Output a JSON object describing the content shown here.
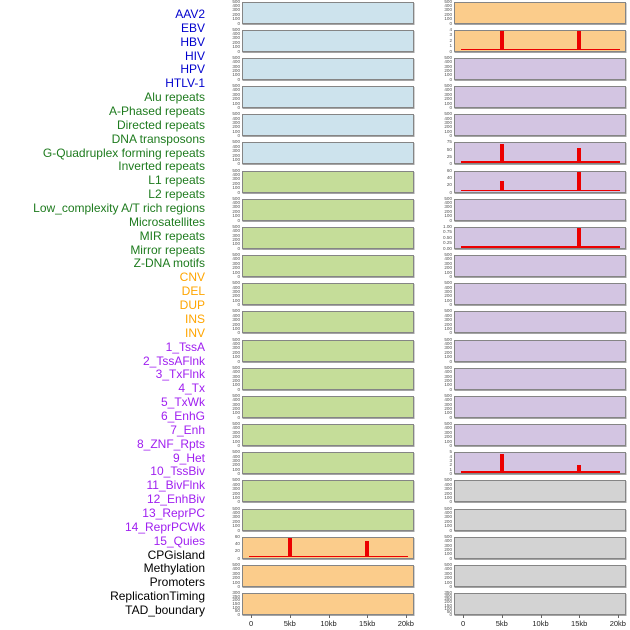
{
  "figure_title": "",
  "chart_data": {
    "type": "small_multiples_density",
    "description_layout": "44 feature labels on left; density panels in two plot columns (rows 1-22 left column, rows 23-44 right column); red spikes mark signal peaks at 5kb and 15kb",
    "x_axis": {
      "tick_labels": [
        "0",
        "5kb",
        "10kb",
        "15kb",
        "20kb"
      ],
      "tick_kb": [
        0,
        5,
        10,
        15,
        20
      ],
      "domain_kb": [
        0,
        20
      ]
    },
    "colors": {
      "spike_red": "#ec0000",
      "panel_border": "#858585",
      "ytick_text": "#555555",
      "xtick_text": "#222222"
    },
    "categories": {
      "virus": {
        "label_color": "#0000cd",
        "fill": "#cde3ed"
      },
      "repeat": {
        "label_color": "#1e7b1e",
        "fill": "#c5dd99"
      },
      "sv": {
        "label_color": "#ffa500",
        "fill": "#fbcc8b"
      },
      "chromatin": {
        "label_color": "#a020f0",
        "fill": "#d3c5e2"
      },
      "other": {
        "label_color": "#000000",
        "fill": "#d3d3d3"
      }
    },
    "panels": [
      {
        "name": "AAV2",
        "category": "virus",
        "yticks": [
          "500",
          "400",
          "300",
          "200",
          "100",
          "0"
        ],
        "spikes": [],
        "baseline": false
      },
      {
        "name": "EBV",
        "category": "virus",
        "yticks": [
          "500",
          "400",
          "300",
          "200",
          "100",
          "0"
        ],
        "spikes": [],
        "baseline": false
      },
      {
        "name": "HBV",
        "category": "virus",
        "yticks": [
          "500",
          "400",
          "300",
          "200",
          "100",
          "0"
        ],
        "spikes": [],
        "baseline": false
      },
      {
        "name": "HIV",
        "category": "virus",
        "yticks": [
          "500",
          "400",
          "300",
          "200",
          "100",
          "0"
        ],
        "spikes": [],
        "baseline": false
      },
      {
        "name": "HPV",
        "category": "virus",
        "yticks": [
          "500",
          "400",
          "300",
          "200",
          "100",
          "0"
        ],
        "spikes": [],
        "baseline": false
      },
      {
        "name": "HTLV-1",
        "category": "virus",
        "yticks": [
          "500",
          "400",
          "300",
          "200",
          "100",
          "0"
        ],
        "spikes": [],
        "baseline": false
      },
      {
        "name": "Alu repeats",
        "category": "repeat",
        "yticks": [
          "500",
          "400",
          "300",
          "200",
          "100",
          "0"
        ],
        "spikes": [],
        "baseline": false
      },
      {
        "name": "A-Phased repeats",
        "category": "repeat",
        "yticks": [
          "500",
          "400",
          "300",
          "200",
          "100",
          "0"
        ],
        "spikes": [],
        "baseline": false
      },
      {
        "name": "Directed repeats",
        "category": "repeat",
        "yticks": [
          "500",
          "400",
          "300",
          "200",
          "100",
          "0"
        ],
        "spikes": [],
        "baseline": false
      },
      {
        "name": "DNA transposons",
        "category": "repeat",
        "yticks": [
          "500",
          "400",
          "300",
          "200",
          "100",
          "0"
        ],
        "spikes": [],
        "baseline": false
      },
      {
        "name": "G-Quadruplex forming repeats",
        "category": "repeat",
        "yticks": [
          "500",
          "400",
          "300",
          "200",
          "100",
          "0"
        ],
        "spikes": [],
        "baseline": false
      },
      {
        "name": "Inverted repeats",
        "category": "repeat",
        "yticks": [
          "500",
          "400",
          "300",
          "200",
          "100",
          "0"
        ],
        "spikes": [],
        "baseline": false
      },
      {
        "name": "L1 repeats",
        "category": "repeat",
        "yticks": [
          "500",
          "400",
          "300",
          "200",
          "100",
          "0"
        ],
        "spikes": [],
        "baseline": false
      },
      {
        "name": "L2 repeats",
        "category": "repeat",
        "yticks": [
          "500",
          "400",
          "300",
          "200",
          "100",
          "0"
        ],
        "spikes": [],
        "baseline": false
      },
      {
        "name": "Low_complexity A/T rich regions",
        "category": "repeat",
        "yticks": [
          "500",
          "400",
          "300",
          "200",
          "100",
          "0"
        ],
        "spikes": [],
        "baseline": false
      },
      {
        "name": "Microsatellites",
        "category": "repeat",
        "yticks": [
          "500",
          "400",
          "300",
          "200",
          "100",
          "0"
        ],
        "spikes": [],
        "baseline": false
      },
      {
        "name": "MIR repeats",
        "category": "repeat",
        "yticks": [
          "500",
          "400",
          "300",
          "200",
          "100",
          "0"
        ],
        "spikes": [],
        "baseline": false
      },
      {
        "name": "Mirror repeats",
        "category": "repeat",
        "yticks": [
          "500",
          "400",
          "300",
          "200",
          "100",
          "0"
        ],
        "spikes": [],
        "baseline": false
      },
      {
        "name": "Z-DNA motifs",
        "category": "repeat",
        "yticks": [
          "500",
          "400",
          "300",
          "200",
          "100",
          "0"
        ],
        "spikes": [],
        "baseline": false
      },
      {
        "name": "CNV",
        "category": "sv",
        "yticks": [
          "60",
          "40",
          "20",
          "0"
        ],
        "spikes": [
          {
            "kb": 5,
            "frac": 1.0
          },
          {
            "kb": 15,
            "frac": 0.87
          }
        ],
        "baseline": true
      },
      {
        "name": "DEL",
        "category": "sv",
        "yticks": [
          "500",
          "400",
          "300",
          "200",
          "100",
          "0"
        ],
        "spikes": [],
        "baseline": false
      },
      {
        "name": "DUP",
        "category": "sv",
        "yticks": [
          "300",
          "250",
          "200",
          "150",
          "100",
          "50",
          "0"
        ],
        "spikes": [],
        "baseline": false
      },
      {
        "name": "INS",
        "category": "sv",
        "yticks": [
          "500",
          "400",
          "300",
          "200",
          "100",
          "0"
        ],
        "spikes": [],
        "baseline": false
      },
      {
        "name": "INV",
        "category": "sv",
        "yticks": [
          "4",
          "3",
          "2",
          "1",
          "0"
        ],
        "spikes": [
          {
            "kb": 5,
            "frac": 1.0
          },
          {
            "kb": 15,
            "frac": 1.0
          }
        ],
        "baseline": true
      },
      {
        "name": "1_TssA",
        "category": "chromatin",
        "yticks": [
          "500",
          "400",
          "300",
          "200",
          "100",
          "0"
        ],
        "spikes": [],
        "baseline": false
      },
      {
        "name": "2_TssAFlnk",
        "category": "chromatin",
        "yticks": [
          "500",
          "400",
          "300",
          "200",
          "100",
          "0"
        ],
        "spikes": [],
        "baseline": false
      },
      {
        "name": "3_TxFlnk",
        "category": "chromatin",
        "yticks": [
          "500",
          "400",
          "300",
          "200",
          "100",
          "0"
        ],
        "spikes": [],
        "baseline": false
      },
      {
        "name": "4_Tx",
        "category": "chromatin",
        "yticks": [
          "75",
          "50",
          "25",
          "0"
        ],
        "spikes": [
          {
            "kb": 5,
            "frac": 1.0
          },
          {
            "kb": 15,
            "frac": 0.78
          }
        ],
        "baseline": true
      },
      {
        "name": "5_TxWk",
        "category": "chromatin",
        "yticks": [
          "60",
          "40",
          "20",
          "0"
        ],
        "spikes": [
          {
            "kb": 5,
            "frac": 0.55
          },
          {
            "kb": 15,
            "frac": 1.0
          }
        ],
        "baseline": true
      },
      {
        "name": "6_EnhG",
        "category": "chromatin",
        "yticks": [
          "500",
          "400",
          "300",
          "200",
          "100",
          "0"
        ],
        "spikes": [],
        "baseline": false
      },
      {
        "name": "7_Enh",
        "category": "chromatin",
        "yticks": [
          "1.00",
          "0.75",
          "0.50",
          "0.25",
          "0.00"
        ],
        "spikes": [
          {
            "kb": 15,
            "frac": 1.0
          }
        ],
        "baseline": true
      },
      {
        "name": "8_ZNF_Rpts",
        "category": "chromatin",
        "yticks": [
          "500",
          "400",
          "300",
          "200",
          "100",
          "0"
        ],
        "spikes": [],
        "baseline": false
      },
      {
        "name": "9_Het",
        "category": "chromatin",
        "yticks": [
          "500",
          "400",
          "300",
          "200",
          "100",
          "0"
        ],
        "spikes": [],
        "baseline": false
      },
      {
        "name": "10_TssBiv",
        "category": "chromatin",
        "yticks": [
          "500",
          "400",
          "300",
          "200",
          "100",
          "0"
        ],
        "spikes": [],
        "baseline": false
      },
      {
        "name": "11_BivFlnk",
        "category": "chromatin",
        "yticks": [
          "500",
          "400",
          "300",
          "200",
          "100",
          "0"
        ],
        "spikes": [],
        "baseline": false
      },
      {
        "name": "12_EnhBiv",
        "category": "chromatin",
        "yticks": [
          "500",
          "400",
          "300",
          "200",
          "100",
          "0"
        ],
        "spikes": [],
        "baseline": false
      },
      {
        "name": "13_ReprPC",
        "category": "chromatin",
        "yticks": [
          "500",
          "400",
          "300",
          "200",
          "100",
          "0"
        ],
        "spikes": [],
        "baseline": false
      },
      {
        "name": "14_ReprPCWk",
        "category": "chromatin",
        "yticks": [
          "500",
          "400",
          "300",
          "200",
          "100",
          "0"
        ],
        "spikes": [],
        "baseline": false
      },
      {
        "name": "15_Quies",
        "category": "chromatin",
        "yticks": [
          "5",
          "4",
          "3",
          "2",
          "1",
          "0"
        ],
        "spikes": [
          {
            "kb": 5,
            "frac": 1.0
          },
          {
            "kb": 15,
            "frac": 0.42
          }
        ],
        "baseline": true
      },
      {
        "name": "CPGisland",
        "category": "other",
        "yticks": [
          "500",
          "400",
          "300",
          "200",
          "100",
          "0"
        ],
        "spikes": [],
        "baseline": false
      },
      {
        "name": "Methylation",
        "category": "other",
        "yticks": [
          "500",
          "400",
          "300",
          "200",
          "100",
          "0"
        ],
        "spikes": [],
        "baseline": false
      },
      {
        "name": "Promoters",
        "category": "other",
        "yticks": [
          "500",
          "400",
          "300",
          "200",
          "100",
          "0"
        ],
        "spikes": [],
        "baseline": false
      },
      {
        "name": "ReplicationTiming",
        "category": "other",
        "yticks": [
          "500",
          "400",
          "300",
          "200",
          "100",
          "0"
        ],
        "spikes": [],
        "baseline": false
      },
      {
        "name": "TAD_boundary",
        "category": "other",
        "yticks": [
          "350",
          "300",
          "250",
          "200",
          "150",
          "100",
          "50",
          "0"
        ],
        "spikes": [],
        "baseline": false
      }
    ]
  }
}
